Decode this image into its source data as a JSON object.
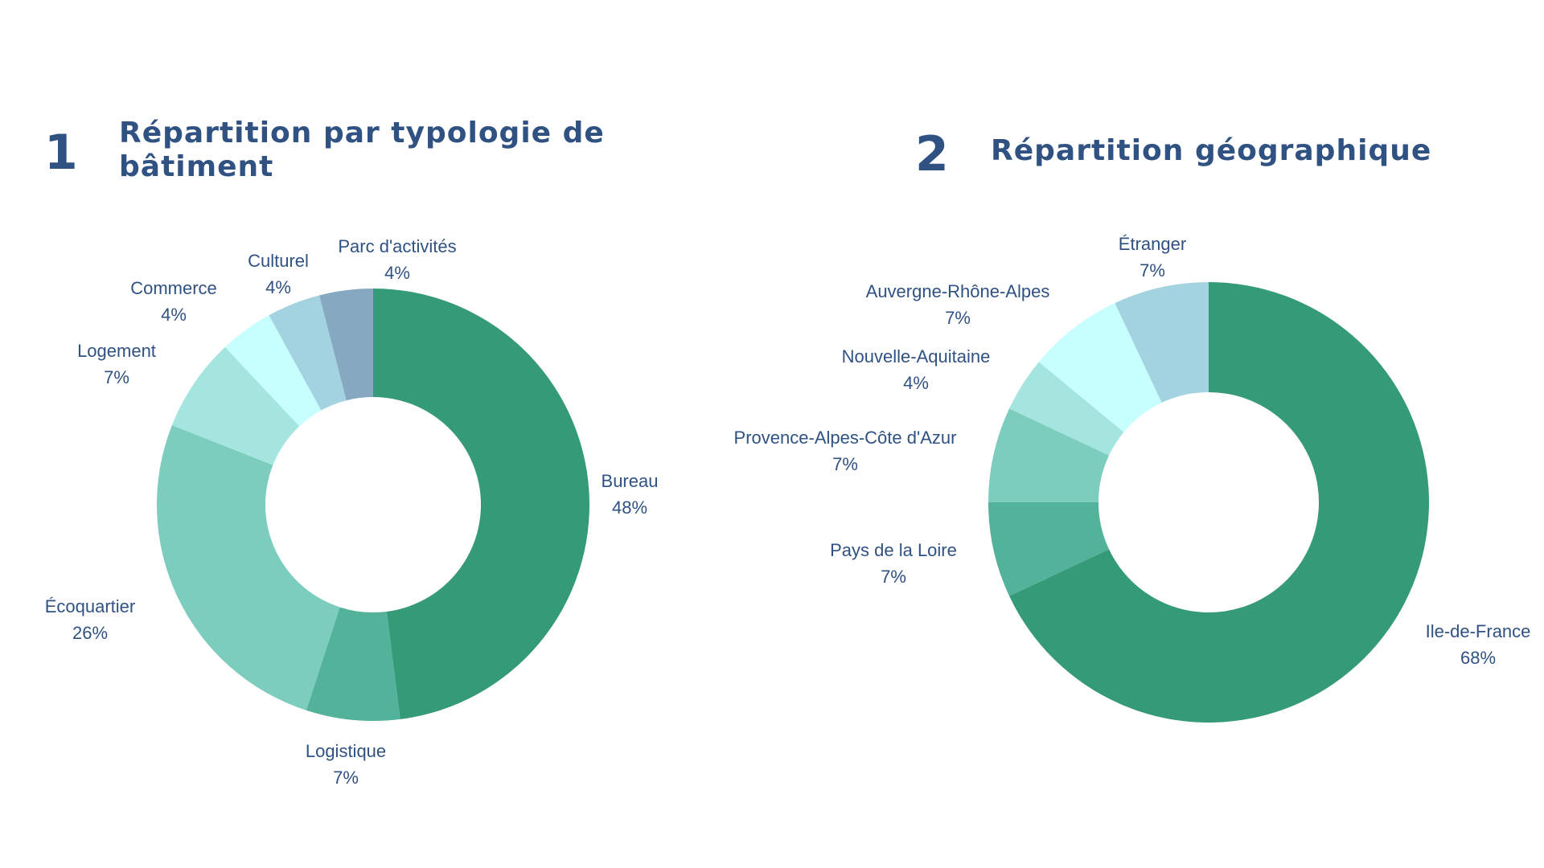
{
  "panels": [
    {
      "number": "1",
      "title_lines": [
        "Répartition par typologie de",
        "bâtiment"
      ]
    },
    {
      "number": "2",
      "title_lines": [
        "Répartition géographique"
      ]
    }
  ],
  "chart_data": [
    {
      "type": "pie",
      "donut": true,
      "title": "Répartition par typologie de bâtiment",
      "categories": [
        "Bureau",
        "Logistique",
        "Écoquartier",
        "Logement",
        "Commerce",
        "Culturel",
        "Parc d'activités"
      ],
      "values": [
        48,
        7,
        26,
        7,
        4,
        4,
        4
      ],
      "value_labels": [
        "48%",
        "7%",
        "26%",
        "7%",
        "4%",
        "4%",
        "4%"
      ],
      "colors": [
        "#359a77",
        "#53b29a",
        "#7ccdbd",
        "#a4e5df",
        "#c7fefe",
        "#a3d3e0",
        "#87a8c1"
      ],
      "start": "top",
      "direction": "clockwise",
      "legend": "labels outside slices"
    },
    {
      "type": "pie",
      "donut": true,
      "title": "Répartition géographique",
      "categories": [
        "Ile-de-France",
        "Pays de la Loire",
        "Provence-Alpes-Côte d'Azur",
        "Nouvelle-Aquitaine",
        "Auvergne-Rhône-Alpes",
        "Étranger"
      ],
      "values": [
        68,
        7,
        7,
        4,
        7,
        7
      ],
      "value_labels": [
        "68%",
        "7%",
        "7%",
        "4%",
        "7%",
        "7%"
      ],
      "colors": [
        "#359a77",
        "#53b29a",
        "#7ccdbd",
        "#a4e5df",
        "#c7fefe",
        "#a3d3e0"
      ],
      "start": "top",
      "direction": "clockwise",
      "legend": "labels outside slices"
    }
  ]
}
